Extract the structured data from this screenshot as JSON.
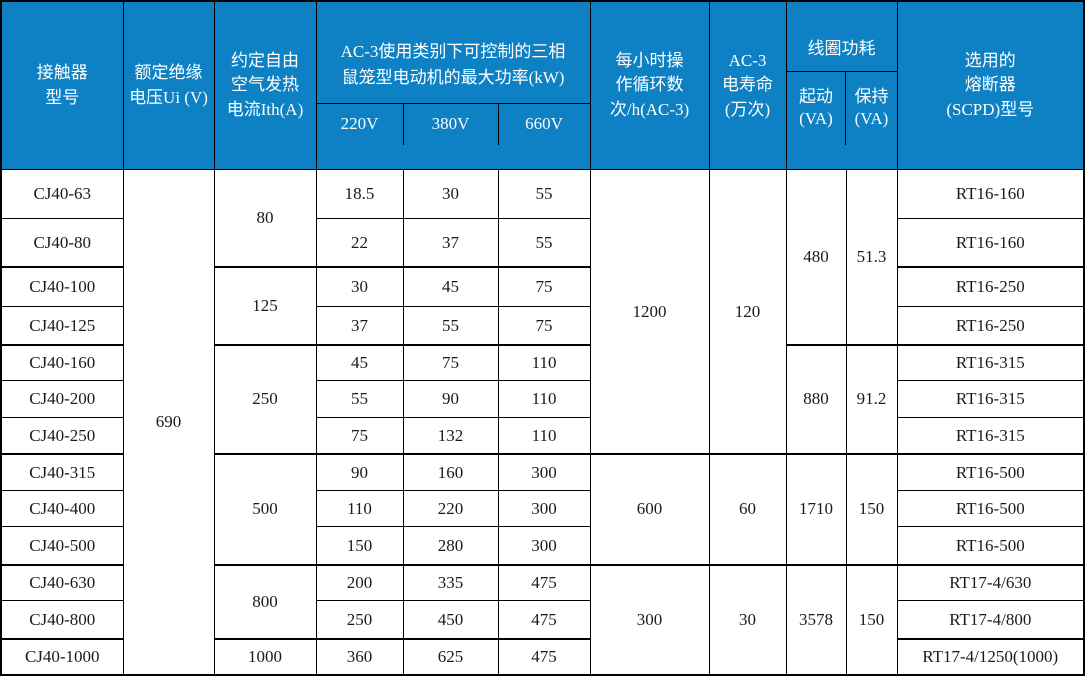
{
  "colors": {
    "header_bg": "#0E80C4",
    "header_text": "#FFFFFF",
    "border": "#000000",
    "body_text": "#1A1A1A"
  },
  "table": {
    "header": {
      "model": "接触器\n型号",
      "ui": "额定绝缘\n电压Ui (V)",
      "ith": "约定自由\n空气发热\n电流Ith(A)",
      "power_title": "AC-3使用类别下可控制的三相\n鼠笼型电动机的最大功率(kW)",
      "power_subs": [
        "220V",
        "380V",
        "660V"
      ],
      "cycles": "每小时操\n作循环数\n次/h(AC-3)",
      "life": "AC-3\n电寿命\n(万次)",
      "coil_title": "线圈功耗",
      "coil_subs": [
        "起动\n(VA)",
        "保持\n(VA)"
      ],
      "fuse": "选用的\n熔断器\n(SCPD)型号"
    },
    "ui_value": "690",
    "rows": [
      {
        "model": "CJ40-63",
        "p220": "18.5",
        "p380": "30",
        "p660": "55",
        "fuse": "RT16-160"
      },
      {
        "model": "CJ40-80",
        "p220": "22",
        "p380": "37",
        "p660": "55",
        "fuse": "RT16-160"
      },
      {
        "model": "CJ40-100",
        "p220": "30",
        "p380": "45",
        "p660": "75",
        "fuse": "RT16-250"
      },
      {
        "model": "CJ40-125",
        "p220": "37",
        "p380": "55",
        "p660": "75",
        "fuse": "RT16-250"
      },
      {
        "model": "CJ40-160",
        "p220": "45",
        "p380": "75",
        "p660": "110",
        "fuse": "RT16-315"
      },
      {
        "model": "CJ40-200",
        "p220": "55",
        "p380": "90",
        "p660": "110",
        "fuse": "RT16-315"
      },
      {
        "model": "CJ40-250",
        "p220": "75",
        "p380": "132",
        "p660": "110",
        "fuse": "RT16-315"
      },
      {
        "model": "CJ40-315",
        "p220": "90",
        "p380": "160",
        "p660": "300",
        "fuse": "RT16-500"
      },
      {
        "model": "CJ40-400",
        "p220": "110",
        "p380": "220",
        "p660": "300",
        "fuse": "RT16-500"
      },
      {
        "model": "CJ40-500",
        "p220": "150",
        "p380": "280",
        "p660": "300",
        "fuse": "RT16-500"
      },
      {
        "model": "CJ40-630",
        "p220": "200",
        "p380": "335",
        "p660": "475",
        "fuse": "RT17-4/630"
      },
      {
        "model": "CJ40-800",
        "p220": "250",
        "p380": "450",
        "p660": "475",
        "fuse": "RT17-4/800"
      },
      {
        "model": "CJ40-1000",
        "p220": "360",
        "p380": "625",
        "p660": "475",
        "fuse": "RT17-4/1250(1000)"
      }
    ],
    "ith_groups": [
      {
        "value": "80",
        "start": 0,
        "span": 2
      },
      {
        "value": "125",
        "start": 2,
        "span": 2
      },
      {
        "value": "250",
        "start": 4,
        "span": 3
      },
      {
        "value": "500",
        "start": 7,
        "span": 3
      },
      {
        "value": "800",
        "start": 10,
        "span": 2
      },
      {
        "value": "1000",
        "start": 12,
        "span": 1
      }
    ],
    "cycle_groups": [
      {
        "cycles": "1200",
        "life": "120",
        "start": 0,
        "span": 7
      },
      {
        "cycles": "600",
        "life": "60",
        "start": 7,
        "span": 3
      },
      {
        "cycles": "300",
        "life": "30",
        "start": 10,
        "span": 3
      }
    ],
    "coil_groups": [
      {
        "start_va": "480",
        "hold_va": "51.3",
        "start": 0,
        "span": 4
      },
      {
        "start_va": "880",
        "hold_va": "91.2",
        "start": 4,
        "span": 3
      },
      {
        "start_va": "1710",
        "hold_va": "150",
        "start": 7,
        "span": 3
      },
      {
        "start_va": "3578",
        "hold_va": "150",
        "start": 10,
        "span": 3
      }
    ]
  }
}
